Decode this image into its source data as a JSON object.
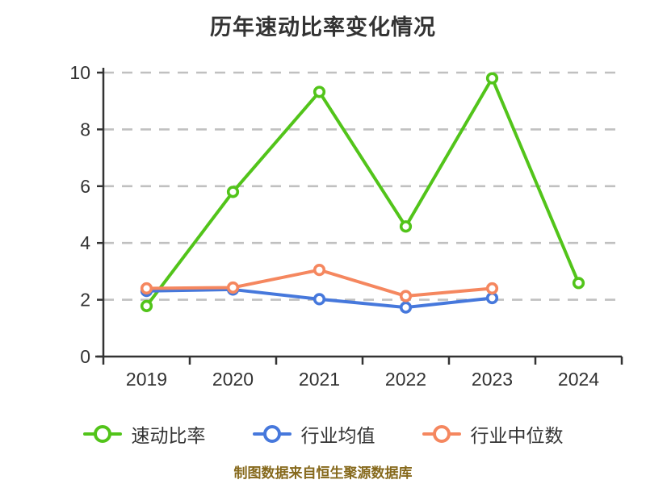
{
  "footer": {
    "text": "制图数据来自恒生聚源数据库",
    "color": "#86691c"
  },
  "chart_data": {
    "type": "line",
    "title": "历年速动比率变化情况",
    "categories": [
      "2019",
      "2020",
      "2021",
      "2022",
      "2023",
      "2024"
    ],
    "series": [
      {
        "name": "速动比率",
        "slug": "quick-ratio",
        "color": "#52c41a",
        "values": [
          1.78,
          5.8,
          9.32,
          4.58,
          9.8,
          2.59
        ]
      },
      {
        "name": "行业均值",
        "slug": "industry-mean",
        "color": "#4678dc",
        "values": [
          2.31,
          2.36,
          2.02,
          1.73,
          2.06,
          null
        ]
      },
      {
        "name": "行业中位数",
        "slug": "industry-median",
        "color": "#f5875f",
        "values": [
          2.4,
          2.43,
          3.05,
          2.13,
          2.4,
          null
        ]
      }
    ],
    "legend": [
      "速动比率",
      "行业均值",
      "行业中位数"
    ],
    "xlabel": "",
    "ylabel": "",
    "ylim": [
      0,
      10
    ],
    "yticks": [
      "0",
      "2",
      "4",
      "6",
      "8",
      "10"
    ],
    "ytick_step": 2,
    "grid": "dashed horizontal",
    "legend_position": "bottom",
    "marker": "circle-white-fill",
    "colors": {
      "text": "#333333",
      "axis": "#333333",
      "grid": "#c0c0c0",
      "marker_fill": "#ffffff"
    }
  }
}
